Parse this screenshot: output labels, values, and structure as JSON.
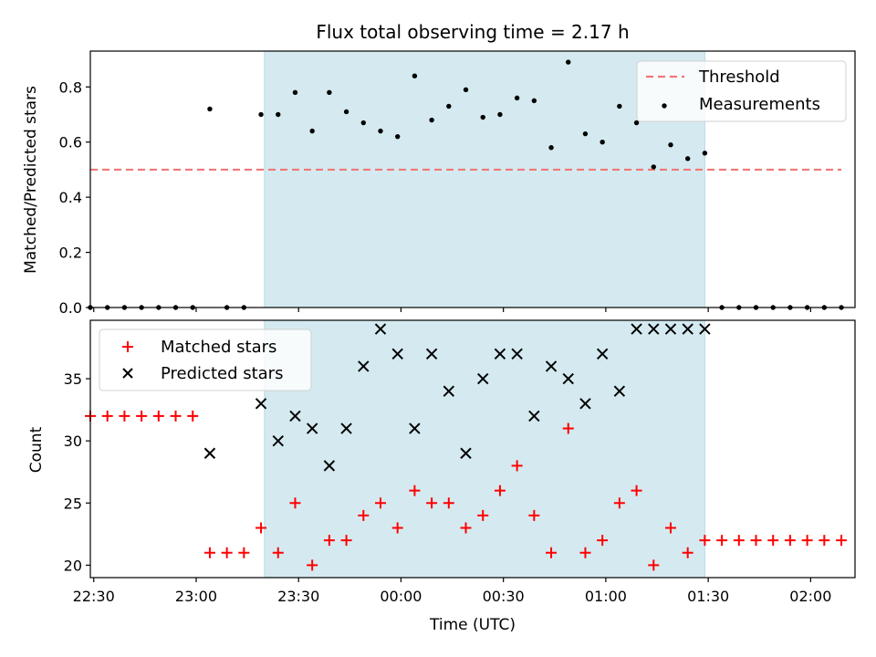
{
  "chart_data": [
    {
      "type": "scatter",
      "title": "Flux total observing time = 2.17 h",
      "xlabel": "",
      "ylabel": "Matched/Predicted stars",
      "xlim": [
        "22:29",
        "02:13"
      ],
      "ylim": [
        0,
        0.93
      ],
      "yticks": [
        "0.0",
        "0.2",
        "0.4",
        "0.6",
        "0.8"
      ],
      "observing_window": {
        "start": "23:20",
        "end": "01:29",
        "color": "#d4eaf0"
      },
      "threshold": {
        "name": "Threshold",
        "value": 0.5,
        "x_start": "22:29",
        "x_end": "02:09",
        "color": "#f07878"
      },
      "series": [
        {
          "name": "Measurements",
          "color": "#000000",
          "x": [
            "22:29",
            "22:34",
            "22:39",
            "22:44",
            "22:49",
            "22:54",
            "22:59",
            "23:04",
            "23:09",
            "23:14",
            "23:19",
            "23:24",
            "23:29",
            "23:34",
            "23:39",
            "23:44",
            "23:49",
            "23:54",
            "23:59",
            "00:04",
            "00:09",
            "00:14",
            "00:19",
            "00:24",
            "00:29",
            "00:34",
            "00:39",
            "00:44",
            "00:49",
            "00:54",
            "00:59",
            "01:04",
            "01:09",
            "01:14",
            "01:19",
            "01:24",
            "01:29",
            "01:34",
            "01:39",
            "01:44",
            "01:49",
            "01:54",
            "01:59",
            "02:04",
            "02:09"
          ],
          "y": [
            0,
            0,
            0,
            0,
            0,
            0,
            0,
            0.72,
            0,
            0,
            0.7,
            0.7,
            0.78,
            0.64,
            0.78,
            0.71,
            0.67,
            0.64,
            0.62,
            0.84,
            0.68,
            0.73,
            0.79,
            0.69,
            0.7,
            0.76,
            0.75,
            0.58,
            0.89,
            0.63,
            0.6,
            0.73,
            0.67,
            0.51,
            0.59,
            0.54,
            0.56,
            0,
            0,
            0,
            0,
            0,
            0,
            0,
            0
          ]
        }
      ],
      "legend": {
        "position": "top-right",
        "entries": [
          "Threshold",
          "Measurements"
        ]
      }
    },
    {
      "type": "scatter",
      "title": "",
      "xlabel": "Time (UTC)",
      "ylabel": "Count",
      "xlim": [
        "22:29",
        "02:13"
      ],
      "ylim": [
        19,
        39.7
      ],
      "yticks": [
        "20",
        "25",
        "30",
        "35"
      ],
      "xticks": [
        "22:30",
        "23:00",
        "23:30",
        "00:00",
        "00:30",
        "01:00",
        "01:30",
        "02:00"
      ],
      "observing_window": {
        "start": "23:20",
        "end": "01:29",
        "color": "#d4eaf0"
      },
      "series": [
        {
          "name": "Matched stars",
          "marker": "+",
          "color": "#ff0000",
          "x": [
            "22:29",
            "22:34",
            "22:39",
            "22:44",
            "22:49",
            "22:54",
            "22:59",
            "23:04",
            "23:09",
            "23:14",
            "23:19",
            "23:24",
            "23:29",
            "23:34",
            "23:39",
            "23:44",
            "23:49",
            "23:54",
            "23:59",
            "00:04",
            "00:09",
            "00:14",
            "00:19",
            "00:24",
            "00:29",
            "00:34",
            "00:39",
            "00:44",
            "00:49",
            "00:54",
            "00:59",
            "01:04",
            "01:09",
            "01:14",
            "01:19",
            "01:24",
            "01:29",
            "01:34",
            "01:39",
            "01:44",
            "01:49",
            "01:54",
            "01:59",
            "02:04",
            "02:09"
          ],
          "y": [
            32,
            32,
            32,
            32,
            32,
            32,
            32,
            21,
            21,
            21,
            23,
            21,
            25,
            20,
            22,
            22,
            24,
            25,
            23,
            26,
            25,
            25,
            23,
            24,
            26,
            28,
            24,
            21,
            31,
            21,
            22,
            25,
            26,
            20,
            23,
            21,
            22,
            22,
            22,
            22,
            22,
            22,
            22,
            22,
            22
          ]
        },
        {
          "name": "Predicted stars",
          "marker": "x",
          "color": "#000000",
          "x": [
            "23:04",
            "23:19",
            "23:24",
            "23:29",
            "23:34",
            "23:39",
            "23:44",
            "23:49",
            "23:54",
            "23:59",
            "00:04",
            "00:09",
            "00:14",
            "00:19",
            "00:24",
            "00:29",
            "00:34",
            "00:39",
            "00:44",
            "00:49",
            "00:54",
            "00:59",
            "01:04",
            "01:09",
            "01:14",
            "01:19",
            "01:24",
            "01:29"
          ],
          "y": [
            29,
            33,
            30,
            32,
            31,
            28,
            31,
            36,
            39,
            37,
            31,
            37,
            34,
            29,
            35,
            37,
            37,
            32,
            36,
            35,
            33,
            37,
            34,
            39,
            39,
            39,
            39,
            39
          ]
        }
      ],
      "legend": {
        "position": "top-left",
        "entries": [
          "Matched stars",
          "Predicted stars"
        ]
      }
    }
  ]
}
